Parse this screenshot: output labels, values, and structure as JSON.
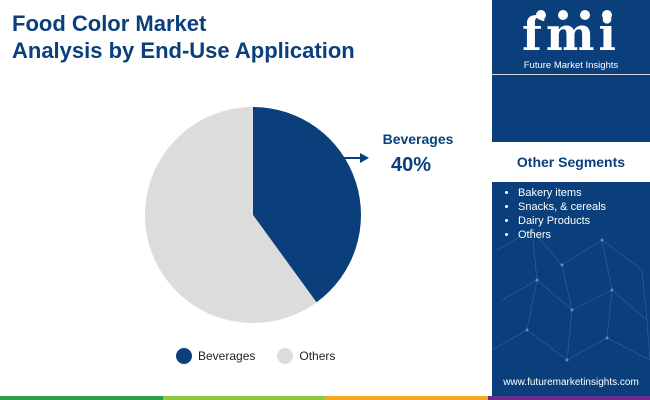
{
  "title_lines": [
    "Food Color Market",
    "Analysis by End-Use Application"
  ],
  "chart_data": {
    "type": "pie",
    "categories": [
      "Beverages",
      "Others"
    ],
    "values": [
      40,
      60
    ],
    "colors": [
      "#0b3f7c",
      "#dcdcdc"
    ],
    "legend_position": "bottom",
    "callout": {
      "label": "Beverages",
      "value": "40%"
    }
  },
  "legend": [
    {
      "label": "Beverages",
      "color": "#0b3f7c"
    },
    {
      "label": "Others",
      "color": "#dcdcdc"
    }
  ],
  "panel": {
    "logo_text": "fmi",
    "logo_subtitle": "Future Market Insights",
    "segments_title": "Other Segments",
    "segments": [
      "Bakery items",
      "Snacks, & cereals",
      "Dairy Products",
      "Others"
    ],
    "website": "www.futuremarketinsights.com"
  },
  "bottom_bar_colors": [
    "#2e9e48",
    "#8dc63f",
    "#f5a623",
    "#6d2c8f"
  ]
}
